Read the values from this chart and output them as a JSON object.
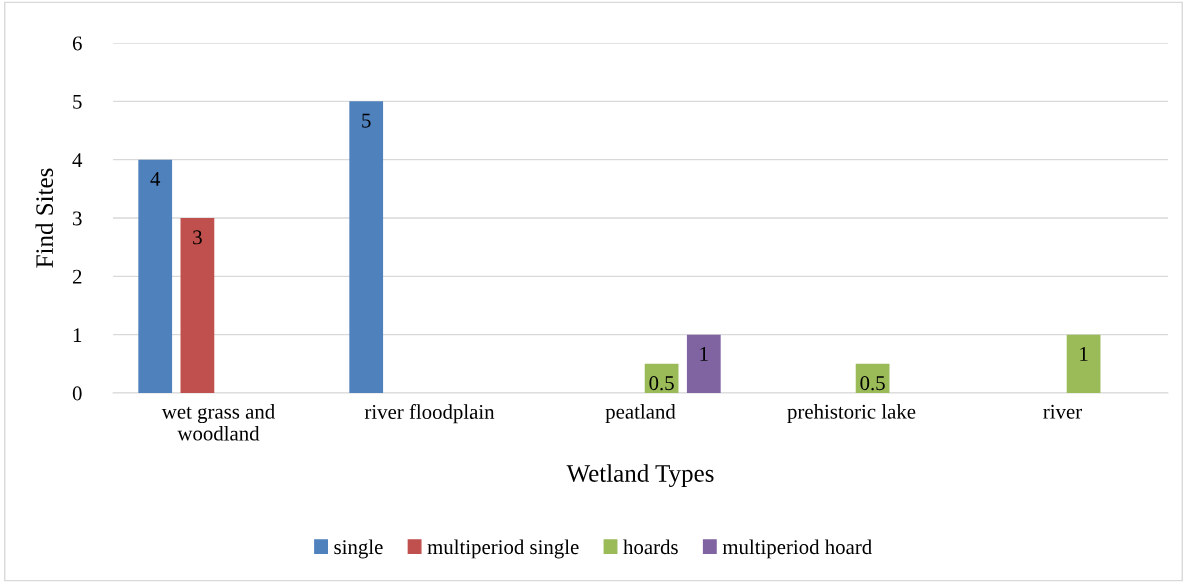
{
  "chart_data": {
    "type": "bar",
    "xlabel": "Wetland Types",
    "ylabel": "Find Sites",
    "categories": [
      "wet grass and\nwoodland",
      "river floodplain",
      "peatland",
      "prehistoric lake",
      "river"
    ],
    "series": [
      {
        "name": "single",
        "color": "#4f81bd",
        "values": [
          4,
          5,
          null,
          null,
          null
        ]
      },
      {
        "name": "multiperiod single",
        "color": "#c0504d",
        "values": [
          3,
          null,
          null,
          null,
          null
        ]
      },
      {
        "name": "hoards",
        "color": "#9bbb59",
        "values": [
          null,
          null,
          0.5,
          0.5,
          1
        ]
      },
      {
        "name": "multiperiod hoard",
        "color": "#8064a2",
        "values": [
          null,
          null,
          1,
          null,
          null
        ]
      }
    ],
    "ylim": [
      0,
      6
    ],
    "yticks": [
      0,
      1,
      2,
      3,
      4,
      5,
      6
    ],
    "grid": "y",
    "legend": "bottom",
    "data_labels": true
  }
}
